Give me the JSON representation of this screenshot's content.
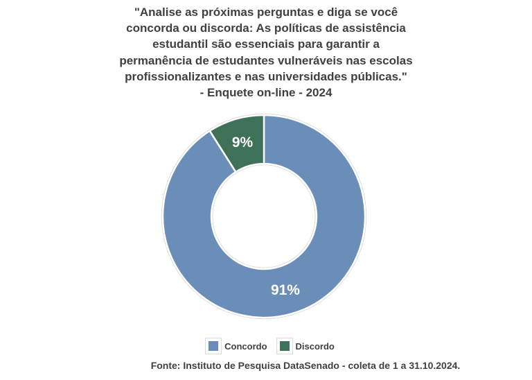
{
  "header": {
    "title": "\"Analise as próximas perguntas e diga se você\nconcorda ou discorda: As políticas de assistência\nestudantil são essenciais para garantir a\npermanência de estudantes vulneráveis nas escolas\nprofissionalizantes e nas universidades públicas.\"\n- Enquete on-line - 2024"
  },
  "chart_data": {
    "type": "pie",
    "subtype": "donut",
    "title": "\"Analise as próximas perguntas e diga se você concorda ou discorda: As políticas de assistência estudantil são essenciais para garantir a permanência de estudantes vulneráveis nas escolas profissionalizantes e nas universidades públicas.\" - Enquete on-line - 2024",
    "categories": [
      "Concordo",
      "Discordo"
    ],
    "values": [
      91,
      9
    ],
    "data_labels": [
      "91%",
      "9%"
    ],
    "colors": [
      "#6A8EB8",
      "#3E7157"
    ],
    "data_label_color": "#FFFFFF",
    "slice_border_color": "#FFFFFF",
    "start_angle_deg": 0,
    "direction": "clockwise",
    "inner_radius_ratio": 0.52,
    "legend_position": "bottom",
    "legend": [
      {
        "label": "Concordo",
        "color": "#6A8EB8"
      },
      {
        "label": "Discordo",
        "color": "#3E7157"
      }
    ]
  },
  "footer": {
    "source": "Fonte: Instituto de Pesquisa DataSenado - coleta de 1 a 31.10.2024."
  },
  "colors": {
    "text": "#404040",
    "background": "#FFFFFF"
  }
}
